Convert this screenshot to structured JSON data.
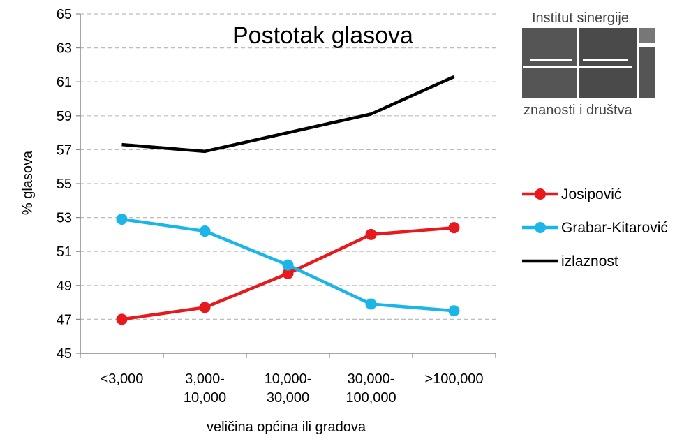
{
  "chart_data": {
    "type": "line",
    "title": "Postotak glasova",
    "xlabel": "veličina općina ili gradova",
    "ylabel": "% glasova",
    "categories": [
      [
        "<3,000"
      ],
      [
        "3,000-",
        "10,000"
      ],
      [
        "10,000-",
        "30,000"
      ],
      [
        "30,000-",
        "100,000"
      ],
      [
        ">100,000"
      ]
    ],
    "ylim": [
      45,
      65
    ],
    "yticks": [
      45,
      47,
      49,
      51,
      53,
      55,
      57,
      59,
      61,
      63,
      65
    ],
    "grid": true,
    "legend_position": "right",
    "series": [
      {
        "name": "Josipović",
        "color": "#e8191c",
        "markers": true,
        "values": [
          47.0,
          47.7,
          49.7,
          52.0,
          52.4
        ]
      },
      {
        "name": "Grabar-Kitarović",
        "color": "#1cb5e8",
        "markers": true,
        "values": [
          52.9,
          52.2,
          50.2,
          47.9,
          47.5
        ]
      },
      {
        "name": "izlaznost",
        "color": "#000000",
        "markers": false,
        "values": [
          57.3,
          56.9,
          58.0,
          59.1,
          61.3
        ]
      }
    ]
  },
  "logo": {
    "line1": "Institut sinergije",
    "line2": "znanosti i društva"
  }
}
